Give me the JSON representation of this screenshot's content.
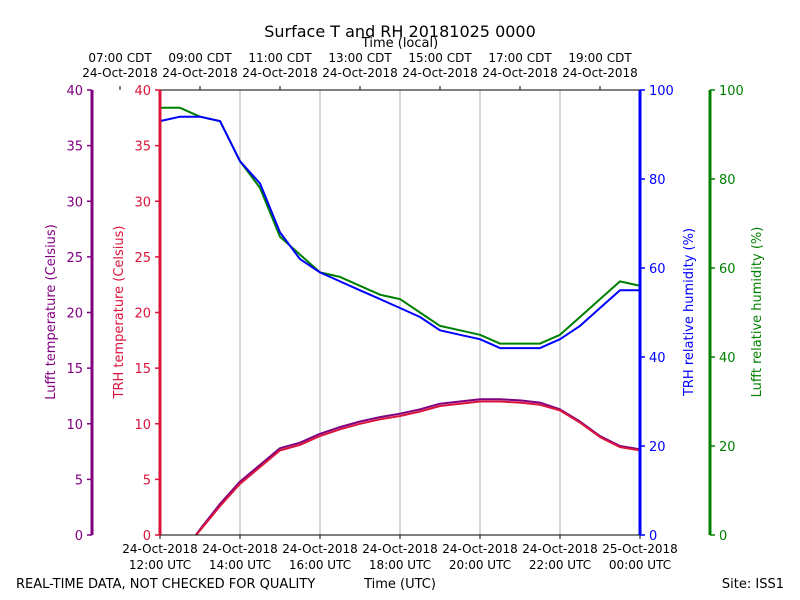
{
  "chart_data": {
    "type": "line",
    "title": "Surface T and RH 20181025 0000",
    "top_axis_label": "Time (local)",
    "top_ticks": [
      {
        "x": 11,
        "l1": "07:00 CDT",
        "l2": "24-Oct-2018"
      },
      {
        "x": 13,
        "l1": "09:00 CDT",
        "l2": "24-Oct-2018"
      },
      {
        "x": 15,
        "l1": "11:00 CDT",
        "l2": "24-Oct-2018"
      },
      {
        "x": 17,
        "l1": "13:00 CDT",
        "l2": "24-Oct-2018"
      },
      {
        "x": 19,
        "l1": "15:00 CDT",
        "l2": "24-Oct-2018"
      },
      {
        "x": 21,
        "l1": "17:00 CDT",
        "l2": "24-Oct-2018"
      },
      {
        "x": 23,
        "l1": "19:00 CDT",
        "l2": "24-Oct-2018"
      }
    ],
    "xlabel": "Time (UTC)",
    "bottom_ticks": [
      {
        "x": 12,
        "l1": "24-Oct-2018",
        "l2": "12:00 UTC"
      },
      {
        "x": 14,
        "l1": "24-Oct-2018",
        "l2": "14:00 UTC"
      },
      {
        "x": 16,
        "l1": "24-Oct-2018",
        "l2": "16:00 UTC"
      },
      {
        "x": 18,
        "l1": "24-Oct-2018",
        "l2": "18:00 UTC"
      },
      {
        "x": 20,
        "l1": "24-Oct-2018",
        "l2": "20:00 UTC"
      },
      {
        "x": 22,
        "l1": "24-Oct-2018",
        "l2": "22:00 UTC"
      },
      {
        "x": 24,
        "l1": "25-Oct-2018",
        "l2": "00:00 UTC"
      }
    ],
    "xlim": [
      12,
      24
    ],
    "axes": {
      "lufft_temp": {
        "label": "Lufft temperature (Celsius)",
        "color": "#800080",
        "ticks": [
          "0",
          "5",
          "10",
          "15",
          "20",
          "25",
          "30",
          "35",
          "40"
        ],
        "ylim": [
          0,
          40
        ]
      },
      "trh_temp": {
        "label": "TRH temperature (Celsius)",
        "color": "#dc143c",
        "ticks": [
          "0",
          "5",
          "10",
          "15",
          "20",
          "25",
          "30",
          "35",
          "40"
        ],
        "ylim": [
          0,
          40
        ]
      },
      "trh_rh": {
        "label": "TRH relative humidity (%)",
        "color": "#0000ff",
        "ticks": [
          "0",
          "20",
          "40",
          "60",
          "80",
          "100"
        ],
        "ylim": [
          0,
          100
        ]
      },
      "lufft_rh": {
        "label": "Lufft relative humidity (%)",
        "color": "#008000",
        "ticks": [
          "0",
          "20",
          "40",
          "60",
          "80",
          "100"
        ],
        "ylim": [
          0,
          100
        ]
      }
    },
    "grid": "vertical",
    "series": [
      {
        "id": "lufft_rh",
        "axis": "rh",
        "color": "#008000",
        "x": [
          12.0,
          12.5,
          13.0,
          13.5,
          14.0,
          14.5,
          15.0,
          15.5,
          16.0,
          16.5,
          17.0,
          17.5,
          18.0,
          18.5,
          19.0,
          19.5,
          20.0,
          20.5,
          21.0,
          21.5,
          22.0,
          22.5,
          23.0,
          23.5,
          24.0
        ],
        "y": [
          96,
          96,
          94,
          93,
          84,
          78,
          67,
          63,
          59,
          58,
          56,
          54,
          53,
          50,
          47,
          46,
          45,
          43,
          43,
          43,
          45,
          49,
          53,
          57,
          56
        ]
      },
      {
        "id": "trh_rh",
        "axis": "rh",
        "color": "#0000ff",
        "x": [
          12.0,
          12.5,
          13.0,
          13.5,
          14.0,
          14.5,
          15.0,
          15.5,
          16.0,
          16.5,
          17.0,
          17.5,
          18.0,
          18.5,
          19.0,
          19.5,
          20.0,
          20.5,
          21.0,
          21.5,
          22.0,
          22.5,
          23.0,
          23.5,
          24.0
        ],
        "y": [
          93,
          94,
          94,
          93,
          84,
          79,
          68,
          62,
          59,
          57,
          55,
          53,
          51,
          49,
          46,
          45,
          44,
          42,
          42,
          42,
          44,
          47,
          51,
          55,
          55
        ]
      },
      {
        "id": "lufft_temp",
        "axis": "temp",
        "color": "#800080",
        "x": [
          12.9,
          13.0,
          13.5,
          14.0,
          14.5,
          15.0,
          15.5,
          16.0,
          16.5,
          17.0,
          17.5,
          18.0,
          18.5,
          19.0,
          19.5,
          20.0,
          20.5,
          21.0,
          21.5,
          22.0,
          22.5,
          23.0,
          23.5,
          24.0
        ],
        "y": [
          0,
          0.5,
          2.8,
          4.8,
          6.3,
          7.8,
          8.3,
          9.1,
          9.7,
          10.2,
          10.6,
          10.9,
          11.3,
          11.8,
          12.0,
          12.2,
          12.2,
          12.1,
          11.9,
          11.3,
          10.2,
          8.9,
          8.0,
          7.7
        ]
      },
      {
        "id": "trh_temp",
        "axis": "temp",
        "color": "#dc143c",
        "x": [
          12.9,
          13.0,
          13.5,
          14.0,
          14.5,
          15.0,
          15.5,
          16.0,
          16.5,
          17.0,
          17.5,
          18.0,
          18.5,
          19.0,
          19.5,
          20.0,
          20.5,
          21.0,
          21.5,
          22.0,
          22.5,
          23.0,
          23.5,
          24.0
        ],
        "y": [
          0,
          0.4,
          2.6,
          4.6,
          6.1,
          7.6,
          8.1,
          8.9,
          9.5,
          10.0,
          10.4,
          10.7,
          11.1,
          11.6,
          11.8,
          12.0,
          12.0,
          11.9,
          11.7,
          11.2,
          10.1,
          8.8,
          7.9,
          7.6
        ]
      }
    ]
  },
  "footer": {
    "left": "REAL-TIME DATA, NOT CHECKED FOR QUALITY",
    "right": "Site: ISS1"
  }
}
